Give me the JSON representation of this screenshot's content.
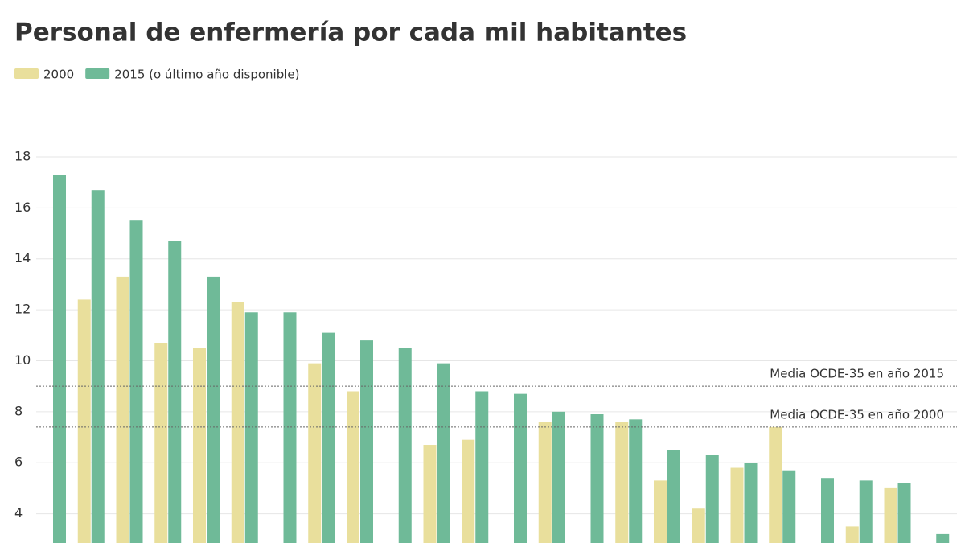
{
  "chart_data": {
    "type": "bar",
    "title": "Personal de enfermería por cada mil habitantes",
    "categories": [
      null,
      null,
      null,
      null,
      null,
      null,
      null,
      null,
      null,
      null,
      null,
      null,
      null,
      null,
      null,
      null,
      null,
      null,
      null,
      null,
      null,
      null,
      null,
      null
    ],
    "series": [
      {
        "name": "2000",
        "color": "#e9df9c",
        "values": [
          null,
          12.4,
          13.3,
          10.7,
          10.5,
          12.3,
          null,
          9.9,
          8.8,
          null,
          6.7,
          6.9,
          null,
          7.6,
          null,
          7.6,
          5.3,
          4.2,
          5.8,
          7.4,
          null,
          3.5,
          5.0,
          null
        ]
      },
      {
        "name": "2015 (o último año disponible)",
        "color": "#6fba98",
        "values": [
          17.3,
          16.7,
          15.5,
          14.7,
          13.3,
          11.9,
          11.9,
          11.1,
          10.8,
          10.5,
          9.9,
          8.8,
          8.7,
          8.0,
          7.9,
          7.7,
          6.5,
          6.3,
          6.0,
          5.7,
          5.4,
          5.3,
          5.2,
          3.2
        ]
      }
    ],
    "reference_lines": [
      {
        "value": 9.0,
        "label": "Media OCDE-35 en año 2015"
      },
      {
        "value": 7.4,
        "label": "Media OCDE-35 en año 2000"
      }
    ],
    "ylim": [
      2.85,
      18
    ],
    "yticks": [
      4,
      6,
      8,
      10,
      12,
      14,
      16,
      18
    ],
    "grid": true,
    "legend": "top-left"
  }
}
